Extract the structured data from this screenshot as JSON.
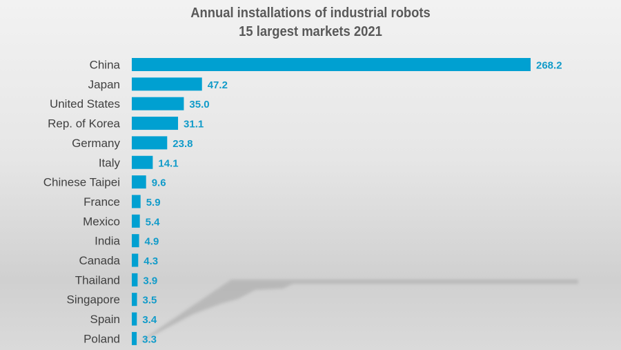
{
  "chart_data": {
    "type": "bar",
    "orientation": "horizontal",
    "title": "Annual installations of industrial robots",
    "subtitle": "15 largest markets 2021",
    "categories": [
      "China",
      "Japan",
      "United States",
      "Rep. of Korea",
      "Germany",
      "Italy",
      "Chinese Taipei",
      "France",
      "Mexico",
      "India",
      "Canada",
      "Thailand",
      "Singapore",
      "Spain",
      "Poland"
    ],
    "values": [
      268.2,
      47.2,
      35.0,
      31.1,
      23.8,
      14.1,
      9.6,
      5.9,
      5.4,
      4.9,
      4.3,
      3.9,
      3.5,
      3.4,
      3.3
    ],
    "value_labels": [
      "268.2",
      "47.2",
      "35.0",
      "31.1",
      "23.8",
      "14.1",
      "9.6",
      "5.9",
      "5.4",
      "4.9",
      "4.3",
      "3.9",
      "3.5",
      "3.4",
      "3.3"
    ],
    "xlabel": "",
    "ylabel": "",
    "grid": false,
    "legend": "none",
    "colors": {
      "bar": "#00a0d1",
      "label": "#119bc9",
      "text": "#404040",
      "title": "#595959"
    }
  }
}
